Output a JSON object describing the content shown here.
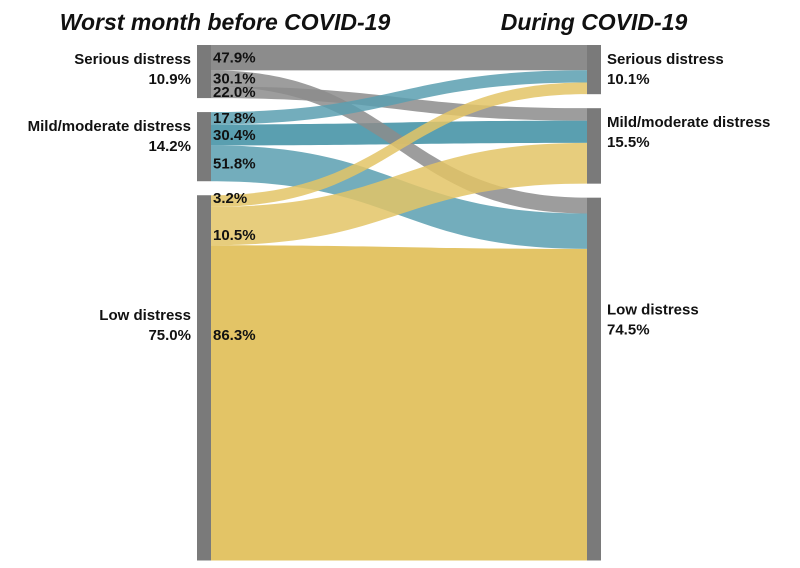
{
  "chart_data": {
    "type": "sankey",
    "titles": {
      "left": "Worst month before COVID-19",
      "right": "During COVID-19"
    },
    "colors": {
      "node": "#7a7a7a",
      "serious": "#8c8c8c",
      "mild": "#5a9fb0",
      "low": "#e3c466"
    },
    "left_nodes": [
      {
        "id": "serious",
        "label": "Serious distress",
        "percent_label": "10.9%",
        "value": 10.9
      },
      {
        "id": "mild",
        "label": "Mild/moderate distress",
        "percent_label": "14.2%",
        "value": 14.2
      },
      {
        "id": "low",
        "label": "Low distress",
        "percent_label": "75.0%",
        "value": 75.0
      }
    ],
    "right_nodes": [
      {
        "id": "serious",
        "label": "Serious distress",
        "percent_label": "10.1%",
        "value": 10.1
      },
      {
        "id": "mild",
        "label": "Mild/moderate distress",
        "percent_label": "15.5%",
        "value": 15.5
      },
      {
        "id": "low",
        "label": "Low distress",
        "percent_label": "74.5%",
        "value": 74.5
      }
    ],
    "flows": [
      {
        "from": "serious",
        "to": "serious",
        "share": 47.9,
        "label": "47.9%"
      },
      {
        "from": "serious",
        "to": "low",
        "share": 30.1,
        "label": "30.1%"
      },
      {
        "from": "serious",
        "to": "mild",
        "share": 22.0,
        "label": "22.0%"
      },
      {
        "from": "mild",
        "to": "serious",
        "share": 17.8,
        "label": "17.8%"
      },
      {
        "from": "mild",
        "to": "mild",
        "share": 30.4,
        "label": "30.4%"
      },
      {
        "from": "mild",
        "to": "low",
        "share": 51.8,
        "label": "51.8%"
      },
      {
        "from": "low",
        "to": "serious",
        "share": 3.2,
        "label": "3.2%"
      },
      {
        "from": "low",
        "to": "mild",
        "share": 10.5,
        "label": "10.5%"
      },
      {
        "from": "low",
        "to": "low",
        "share": 86.3,
        "label": "86.3%"
      }
    ]
  }
}
